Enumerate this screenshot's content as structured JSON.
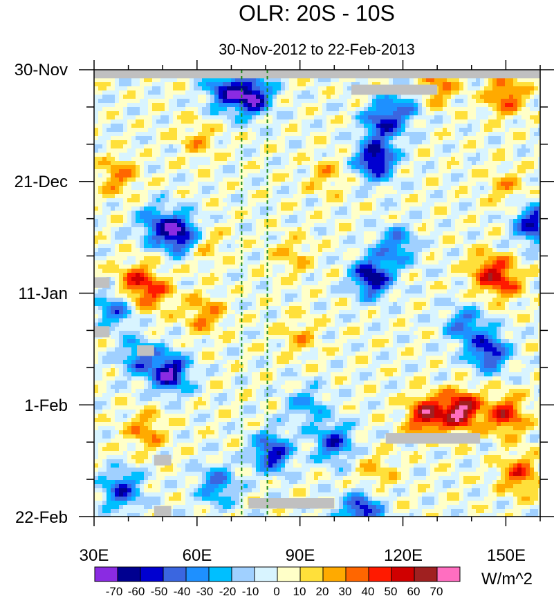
{
  "chart_data": {
    "type": "heatmap",
    "title": "OLR: 20S - 10S",
    "subtitle": "30-Nov-2012 to 22-Feb-2013",
    "xlabel": "",
    "ylabel": "",
    "x_ticks": [
      {
        "value": 30,
        "label": "30E"
      },
      {
        "value": 60,
        "label": "60E"
      },
      {
        "value": 90,
        "label": "90E"
      },
      {
        "value": 120,
        "label": "120E"
      },
      {
        "value": 150,
        "label": "150E"
      }
    ],
    "y_ticks": [
      {
        "value": 0,
        "label": "30-Nov"
      },
      {
        "value": 21,
        "label": "21-Dec"
      },
      {
        "value": 42,
        "label": "11-Jan"
      },
      {
        "value": 63,
        "label": "1-Feb"
      },
      {
        "value": 84,
        "label": "22-Feb"
      }
    ],
    "xlim": [
      30,
      160
    ],
    "ylim": [
      0,
      84
    ],
    "y_inverted": true,
    "reference_lines_x": [
      73,
      80.5
    ],
    "reference_line_color": "#1a8a1a",
    "colorbar": {
      "unit_label": "W/m^2",
      "levels": [
        "-70",
        "-60",
        "-50",
        "-40",
        "-30",
        "-20",
        "-10",
        "0",
        "10",
        "20",
        "30",
        "40",
        "50",
        "60",
        "70"
      ],
      "colors": [
        "#8a2be2",
        "#000090",
        "#0000d0",
        "#3a66e0",
        "#1e90ff",
        "#00bfff",
        "#a0d0ff",
        "#d8f4ff",
        "#ffffc8",
        "#ffe03a",
        "#ffaa00",
        "#ff6600",
        "#ff1a00",
        "#d00000",
        "#a02020",
        "#ff6ec0"
      ]
    },
    "missing_color": "#c0c0c0",
    "anomaly_features": [
      {
        "x": 76,
        "y": 5,
        "value": -70
      },
      {
        "x": 68,
        "y": 4,
        "value": -50
      },
      {
        "x": 112,
        "y": 17,
        "value": -70
      },
      {
        "x": 114,
        "y": 10,
        "value": -50
      },
      {
        "x": 55,
        "y": 31,
        "value": -70
      },
      {
        "x": 48,
        "y": 29,
        "value": -40
      },
      {
        "x": 111,
        "y": 39,
        "value": -70
      },
      {
        "x": 118,
        "y": 33,
        "value": -40
      },
      {
        "x": 52,
        "y": 57,
        "value": -70
      },
      {
        "x": 43,
        "y": 54,
        "value": -40
      },
      {
        "x": 145,
        "y": 53,
        "value": -60
      },
      {
        "x": 138,
        "y": 48,
        "value": -40
      },
      {
        "x": 158,
        "y": 29,
        "value": -60
      },
      {
        "x": 100,
        "y": 70,
        "value": -50
      },
      {
        "x": 82,
        "y": 72,
        "value": -60
      },
      {
        "x": 38,
        "y": 79,
        "value": -50
      },
      {
        "x": 108,
        "y": 83,
        "value": -60
      },
      {
        "x": 120,
        "y": 7,
        "value": -30
      },
      {
        "x": 36,
        "y": 45,
        "value": -40
      },
      {
        "x": 66,
        "y": 78,
        "value": -40
      },
      {
        "x": 92,
        "y": 63,
        "value": -30
      },
      {
        "x": 137,
        "y": 64,
        "value": 70
      },
      {
        "x": 127,
        "y": 65,
        "value": 60
      },
      {
        "x": 150,
        "y": 65,
        "value": 50
      },
      {
        "x": 150,
        "y": 5,
        "value": 40
      },
      {
        "x": 130,
        "y": 3,
        "value": 30
      },
      {
        "x": 145,
        "y": 38,
        "value": 40
      },
      {
        "x": 150,
        "y": 40,
        "value": 30
      },
      {
        "x": 42,
        "y": 40,
        "value": 40
      },
      {
        "x": 48,
        "y": 42,
        "value": 30
      },
      {
        "x": 62,
        "y": 46,
        "value": 30
      },
      {
        "x": 62,
        "y": 33,
        "value": 20
      },
      {
        "x": 88,
        "y": 35,
        "value": 20
      },
      {
        "x": 90,
        "y": 50,
        "value": 20
      },
      {
        "x": 37,
        "y": 20,
        "value": 30
      },
      {
        "x": 98,
        "y": 20,
        "value": 20
      },
      {
        "x": 150,
        "y": 22,
        "value": 20
      },
      {
        "x": 60,
        "y": 13,
        "value": 20
      },
      {
        "x": 45,
        "y": 68,
        "value": 30
      },
      {
        "x": 112,
        "y": 76,
        "value": 20
      },
      {
        "x": 154,
        "y": 76,
        "value": 40
      }
    ],
    "missing_boxes": [
      {
        "x0": 30,
        "x1": 160,
        "y0": 0,
        "y1": 1.6
      },
      {
        "x0": 105,
        "x1": 130,
        "y0": 2.8,
        "y1": 4.7
      },
      {
        "x0": 30,
        "x1": 34.5,
        "y0": 39,
        "y1": 41
      },
      {
        "x0": 30,
        "x1": 34.5,
        "y0": 48.2,
        "y1": 50.3
      },
      {
        "x0": 42.5,
        "x1": 47.5,
        "y0": 51.8,
        "y1": 53.8
      },
      {
        "x0": 115,
        "x1": 142.5,
        "y0": 68.3,
        "y1": 70.3
      },
      {
        "x0": 47.5,
        "x1": 52.5,
        "y0": 72.4,
        "y1": 74.4
      },
      {
        "x0": 75,
        "x1": 100,
        "y0": 80.5,
        "y1": 82.5
      },
      {
        "x0": 47.5,
        "x1": 52.5,
        "y0": 82,
        "y1": 84
      }
    ]
  }
}
